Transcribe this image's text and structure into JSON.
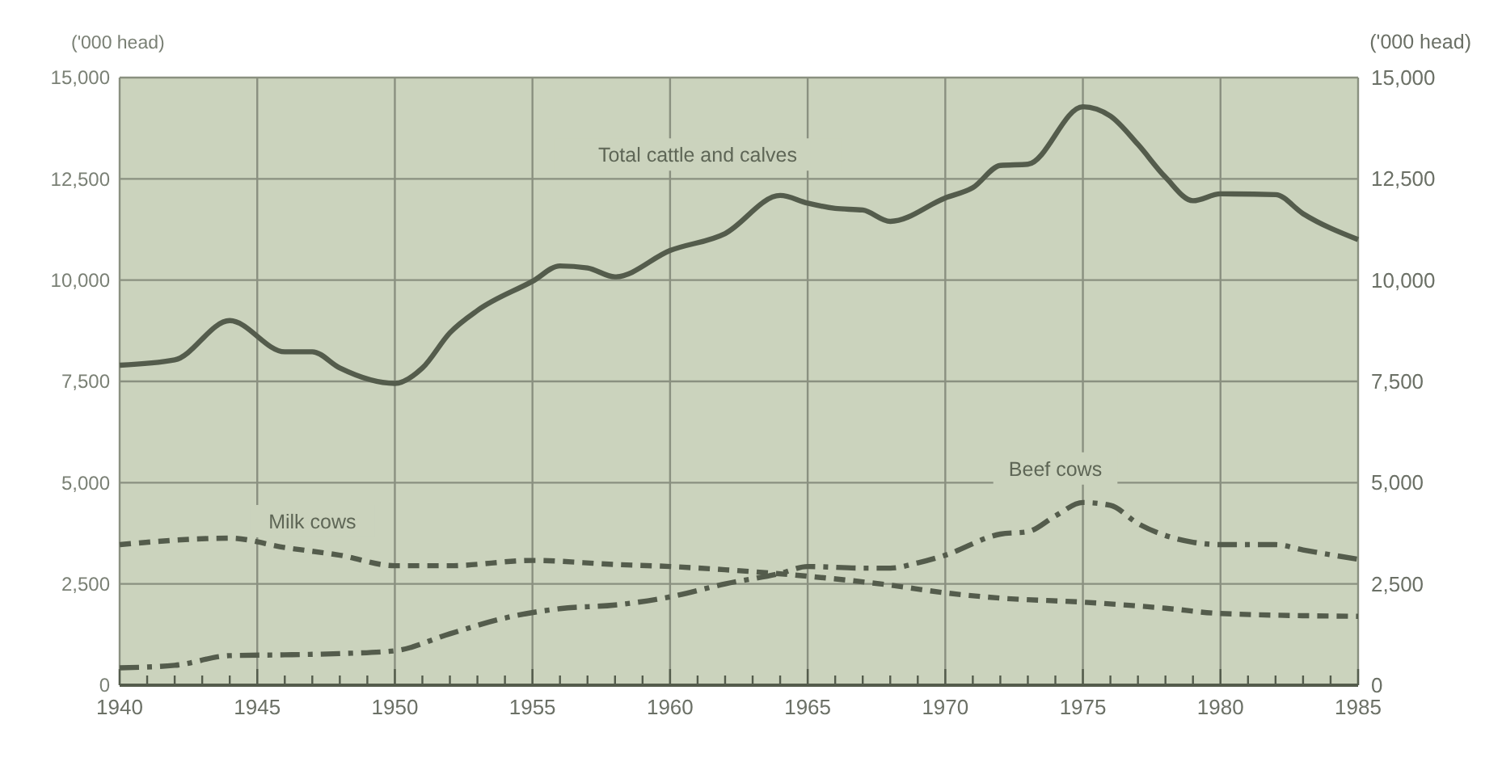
{
  "chart_data": {
    "type": "line",
    "ylabel": "('000 head)",
    "y2label": "('000 head)",
    "x": [
      1940,
      1942,
      1944,
      1946,
      1947,
      1948,
      1950,
      1951,
      1952,
      1953,
      1955,
      1956,
      1957,
      1958,
      1960,
      1962,
      1964,
      1965,
      1966,
      1967,
      1968,
      1970,
      1971,
      1972,
      1973,
      1975,
      1976,
      1977,
      1978,
      1979,
      1980,
      1982,
      1983,
      1985
    ],
    "series": [
      {
        "name": "Total cattle and calves",
        "color": "#545c4c",
        "line_style": "solid",
        "values": [
          7900,
          8030,
          9000,
          8230,
          8230,
          7830,
          7450,
          7830,
          8700,
          9250,
          9970,
          10350,
          10300,
          10080,
          10730,
          11150,
          12090,
          11900,
          11770,
          11730,
          11450,
          12030,
          12280,
          12830,
          12860,
          14280,
          14050,
          13350,
          12540,
          11960,
          12130,
          12110,
          11640,
          11000
        ]
      },
      {
        "name": "Milk cows",
        "color": "#545c4c",
        "line_style": "dashed",
        "x": [
          1940,
          1944,
          1946,
          1948,
          1950,
          1952,
          1955,
          1958,
          1960,
          1962,
          1965,
          1968,
          1970,
          1972,
          1975,
          1978,
          1980,
          1985
        ],
        "values": [
          3470,
          3630,
          3400,
          3210,
          2950,
          2950,
          3080,
          2980,
          2930,
          2850,
          2690,
          2470,
          2280,
          2150,
          2050,
          1900,
          1770,
          1700
        ]
      },
      {
        "name": "Beef cows",
        "color": "#545c4c",
        "line_style": "dashdot",
        "x": [
          1940,
          1942,
          1944,
          1946,
          1948,
          1950,
          1952,
          1954,
          1956,
          1958,
          1960,
          1962,
          1964,
          1965,
          1967,
          1968,
          1969,
          1970,
          1972,
          1973,
          1974,
          1975,
          1976,
          1977,
          1979,
          1980,
          1982,
          1983,
          1985
        ],
        "values": [
          430,
          490,
          730,
          750,
          780,
          850,
          1270,
          1660,
          1890,
          1980,
          2180,
          2500,
          2760,
          2930,
          2890,
          2890,
          3020,
          3210,
          3730,
          3790,
          4180,
          4510,
          4440,
          3990,
          3530,
          3470,
          3470,
          3340,
          3110
        ]
      }
    ],
    "xlim": [
      1940,
      1985
    ],
    "xticks": [
      1940,
      {
        "value": 1941,
        "label": null
      },
      {
        "value": 1942,
        "label": null
      },
      {
        "value": 1943,
        "label": null
      },
      {
        "value": 1944,
        "label": null
      },
      1945,
      {
        "value": 1946,
        "label": null
      },
      {
        "value": 1947,
        "label": null
      },
      {
        "value": 1948,
        "label": null
      },
      {
        "value": 1949,
        "label": null
      },
      1950,
      {
        "value": 1951,
        "label": null
      },
      {
        "value": 1952,
        "label": null
      },
      {
        "value": 1953,
        "label": null
      },
      {
        "value": 1954,
        "label": null
      },
      1955,
      {
        "value": 1956,
        "label": null
      },
      {
        "value": 1957,
        "label": null
      },
      {
        "value": 1958,
        "label": null
      },
      {
        "value": 1959,
        "label": null
      },
      1960,
      {
        "value": 1961,
        "label": null
      },
      {
        "value": 1962,
        "label": null
      },
      {
        "value": 1963,
        "label": null
      },
      {
        "value": 1964,
        "label": null
      },
      1965,
      {
        "value": 1966,
        "label": null
      },
      {
        "value": 1967,
        "label": null
      },
      {
        "value": 1968,
        "label": null
      },
      {
        "value": 1969,
        "label": null
      },
      1970,
      {
        "value": 1971,
        "label": null
      },
      {
        "value": 1972,
        "label": null
      },
      {
        "value": 1973,
        "label": null
      },
      {
        "value": 1974,
        "label": null
      },
      1975,
      {
        "value": 1976,
        "label": null
      },
      {
        "value": 1977,
        "label": null
      },
      {
        "value": 1978,
        "label": null
      },
      {
        "value": 1979,
        "label": null
      },
      1980,
      {
        "value": 1981,
        "label": null
      },
      {
        "value": 1982,
        "label": null
      },
      {
        "value": 1983,
        "label": null
      },
      {
        "value": 1984,
        "label": null
      },
      1985
    ],
    "ylim": [
      0,
      15000
    ],
    "yticks": [
      0,
      {
        "value": 2500,
        "label": "2,500"
      },
      {
        "value": 5000,
        "label": "5,000"
      },
      {
        "value": 7500,
        "label": "7,500"
      },
      {
        "value": 10000,
        "label": "10,000"
      },
      {
        "value": 12500,
        "label": "12,500"
      },
      {
        "value": 15000,
        "label": "15,000"
      }
    ],
    "y2lim": [
      0,
      15000
    ],
    "y2ticks": [
      0,
      {
        "value": 2500,
        "label": "2,500"
      },
      {
        "value": 5000,
        "label": "5,000"
      },
      {
        "value": 7500,
        "label": "7,500"
      },
      {
        "value": 10000,
        "label": "10,000"
      },
      {
        "value": 12500,
        "label": "12,500"
      },
      {
        "value": 15000,
        "label": "15,000"
      }
    ],
    "grid": true,
    "legend": false,
    "marker": "none"
  }
}
